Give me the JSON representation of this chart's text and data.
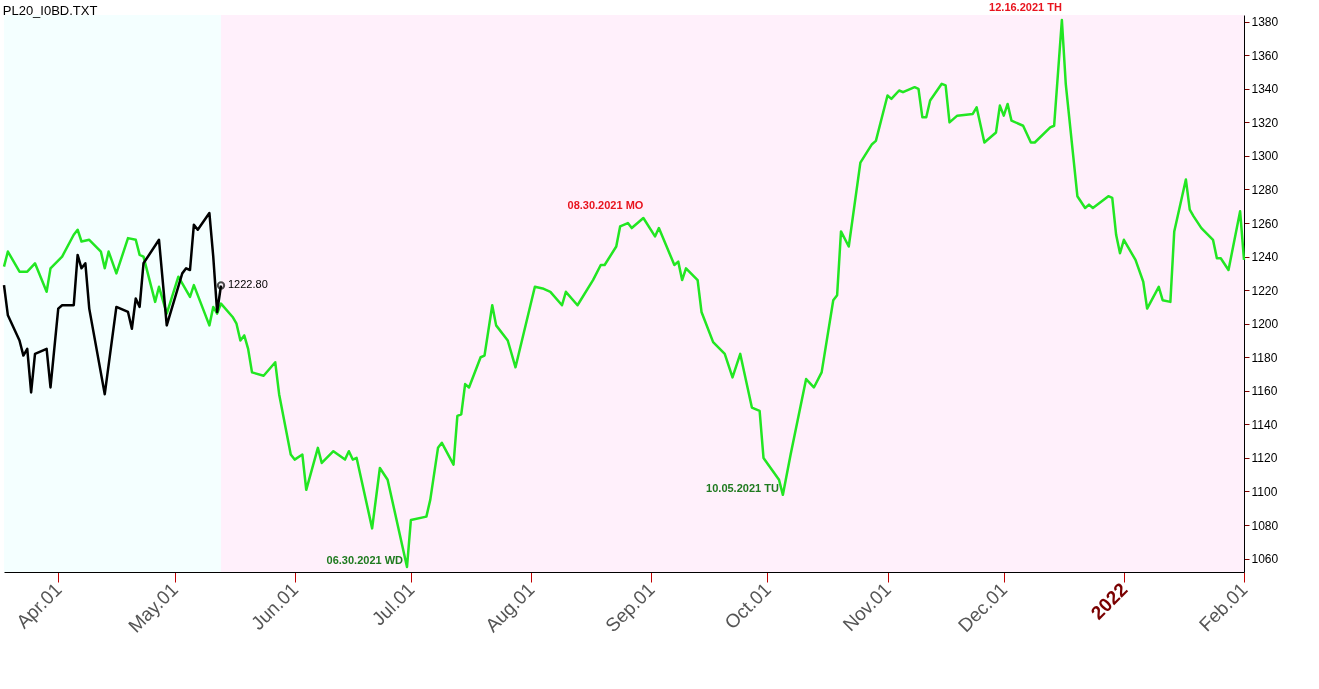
{
  "chart_data": {
    "type": "line",
    "title": "PL20_I0BD.TXT",
    "xlim": [
      "2021-03-18",
      "2022-02-01"
    ],
    "ylim": [
      1052,
      1384
    ],
    "xticks": [
      {
        "value": "2021-04-01",
        "label": "Apr.01"
      },
      {
        "value": "2021-05-01",
        "label": "May.01"
      },
      {
        "value": "2021-06-01",
        "label": "Jun.01"
      },
      {
        "value": "2021-07-01",
        "label": "Jul.01"
      },
      {
        "value": "2021-08-01",
        "label": "Aug.01"
      },
      {
        "value": "2021-09-01",
        "label": "Sep.01"
      },
      {
        "value": "2021-10-01",
        "label": "Oct.01"
      },
      {
        "value": "2021-11-01",
        "label": "Nov.01"
      },
      {
        "value": "2021-12-01",
        "label": "Dec.01"
      },
      {
        "value": "2022-01-01",
        "label": "2022"
      },
      {
        "value": "2022-02-01",
        "label": "Feb.01"
      }
    ],
    "yticks": [
      1060,
      1080,
      1100,
      1120,
      1140,
      1160,
      1180,
      1200,
      1220,
      1240,
      1260,
      1280,
      1300,
      1320,
      1340,
      1360,
      1380
    ],
    "bands": [
      {
        "axis": "x",
        "from": "2021-03-18",
        "to": "2021-05-13",
        "color": "#f4ffff"
      },
      {
        "axis": "x",
        "from": "2021-05-13",
        "to": "2022-02-01",
        "color": "#fff0fb"
      }
    ],
    "series": [
      {
        "color": "#22e622",
        "x": [
          "2021-03-18",
          "2021-03-19",
          "2021-03-22",
          "2021-03-24",
          "2021-03-26",
          "2021-03-29",
          "2021-03-30",
          "2021-04-02",
          "2021-04-05",
          "2021-04-06",
          "2021-04-07",
          "2021-04-09",
          "2021-04-12",
          "2021-04-13",
          "2021-04-14",
          "2021-04-16",
          "2021-04-19",
          "2021-04-21",
          "2021-04-22",
          "2021-04-23",
          "2021-04-26",
          "2021-04-27",
          "2021-04-29",
          "2021-05-02",
          "2021-05-05",
          "2021-05-06",
          "2021-05-10",
          "2021-05-11",
          "2021-05-12",
          "2021-05-13",
          "2021-05-16",
          "2021-05-17",
          "2021-05-18",
          "2021-05-19",
          "2021-05-20",
          "2021-05-21",
          "2021-05-24",
          "2021-05-27",
          "2021-05-28",
          "2021-05-31",
          "2021-06-01",
          "2021-06-03",
          "2021-06-04",
          "2021-06-07",
          "2021-06-08",
          "2021-06-11",
          "2021-06-14",
          "2021-06-15",
          "2021-06-16",
          "2021-06-17",
          "2021-06-21",
          "2021-06-23",
          "2021-06-25",
          "2021-06-30",
          "2021-07-01",
          "2021-07-05",
          "2021-07-06",
          "2021-07-08",
          "2021-07-09",
          "2021-07-12",
          "2021-07-13",
          "2021-07-14",
          "2021-07-15",
          "2021-07-16",
          "2021-07-19",
          "2021-07-20",
          "2021-07-22",
          "2021-07-23",
          "2021-07-26",
          "2021-07-28",
          "2021-08-02",
          "2021-08-04",
          "2021-08-06",
          "2021-08-09",
          "2021-08-10",
          "2021-08-13",
          "2021-08-17",
          "2021-08-19",
          "2021-08-20",
          "2021-08-23",
          "2021-08-24",
          "2021-08-26",
          "2021-08-27",
          "2021-08-30",
          "2021-09-02",
          "2021-09-03",
          "2021-09-07",
          "2021-09-08",
          "2021-09-09",
          "2021-09-10",
          "2021-09-13",
          "2021-09-14",
          "2021-09-15",
          "2021-09-17",
          "2021-09-20",
          "2021-09-22",
          "2021-09-24",
          "2021-09-27",
          "2021-09-29",
          "2021-09-30",
          "2021-10-04",
          "2021-10-05",
          "2021-10-07",
          "2021-10-11",
          "2021-10-13",
          "2021-10-15",
          "2021-10-18",
          "2021-10-19",
          "2021-10-20",
          "2021-10-22",
          "2021-10-25",
          "2021-10-28",
          "2021-10-29",
          "2021-11-01",
          "2021-11-02",
          "2021-11-04",
          "2021-11-05",
          "2021-11-08",
          "2021-11-09",
          "2021-11-10",
          "2021-11-11",
          "2021-11-12",
          "2021-11-15",
          "2021-11-16",
          "2021-11-17",
          "2021-11-19",
          "2021-11-23",
          "2021-11-24",
          "2021-11-26",
          "2021-11-29",
          "2021-11-30",
          "2021-12-01",
          "2021-12-02",
          "2021-12-03",
          "2021-12-06",
          "2021-12-08",
          "2021-12-09",
          "2021-12-13",
          "2021-12-14",
          "2021-12-16",
          "2021-12-17",
          "2021-12-20",
          "2021-12-22",
          "2021-12-23",
          "2021-12-24",
          "2021-12-28",
          "2021-12-29",
          "2021-12-30",
          "2021-12-31",
          "2022-01-01",
          "2022-01-04",
          "2022-01-06",
          "2022-01-07",
          "2022-01-10",
          "2022-01-11",
          "2022-01-13",
          "2022-01-14",
          "2022-01-17",
          "2022-01-18",
          "2022-01-19",
          "2022-01-21",
          "2022-01-24",
          "2022-01-25",
          "2022-01-26",
          "2022-01-28",
          "2022-01-31",
          "2022-02-01"
        ],
        "values": [
          1234,
          1243,
          1231,
          1231,
          1236,
          1219,
          1233,
          1240,
          1253,
          1256,
          1249,
          1250,
          1243,
          1233,
          1243,
          1230,
          1251,
          1250,
          1241,
          1240,
          1213,
          1222,
          1206,
          1228,
          1216,
          1223,
          1199,
          1210,
          1206,
          1212,
          1204,
          1200,
          1190,
          1193,
          1185,
          1171,
          1169,
          1177,
          1158,
          1122,
          1119,
          1122,
          1101,
          1126,
          1117,
          1124,
          1119,
          1124,
          1119,
          1120,
          1078,
          1114,
          1107,
          1055,
          1083,
          1085,
          1095,
          1126,
          1129,
          1116,
          1145,
          1146,
          1164,
          1162,
          1180,
          1181,
          1211,
          1199,
          1190,
          1174,
          1222,
          1221,
          1219,
          1211,
          1219,
          1211,
          1226,
          1235,
          1235,
          1246,
          1258,
          1260,
          1257,
          1263,
          1252,
          1257,
          1235,
          1237,
          1226,
          1233,
          1226,
          1207,
          1201,
          1189,
          1182,
          1168,
          1182,
          1150,
          1148,
          1120,
          1107,
          1098,
          1122,
          1167,
          1162,
          1171,
          1214,
          1217,
          1255,
          1246,
          1296,
          1307,
          1309,
          1336,
          1334,
          1339,
          1338,
          1341,
          1340,
          1323,
          1323,
          1333,
          1343,
          1342,
          1320,
          1324,
          1325,
          1329,
          1308,
          1314,
          1330,
          1324,
          1331,
          1321,
          1318,
          1308,
          1308,
          1317,
          1318,
          1381,
          1343,
          1276,
          1269,
          1271,
          1269,
          1276,
          1275,
          1253,
          1242,
          1250,
          1238,
          1225,
          1209,
          1222,
          1214,
          1213,
          1255,
          1286,
          1268,
          1264,
          1257,
          1250,
          1239,
          1239,
          1232,
          1267,
          1238
        ]
      },
      {
        "color": "#000000",
        "x": [
          "2021-03-18",
          "2021-03-19",
          "2021-03-22",
          "2021-03-23",
          "2021-03-24",
          "2021-03-25",
          "2021-03-26",
          "2021-03-29",
          "2021-03-30",
          "2021-04-01",
          "2021-04-02",
          "2021-04-05",
          "2021-04-06",
          "2021-04-07",
          "2021-04-08",
          "2021-04-09",
          "2021-04-13",
          "2021-04-16",
          "2021-04-19",
          "2021-04-20",
          "2021-04-21",
          "2021-04-22",
          "2021-04-23",
          "2021-04-27",
          "2021-04-29",
          "2021-05-03",
          "2021-05-04",
          "2021-05-05",
          "2021-05-06",
          "2021-05-07",
          "2021-05-10",
          "2021-05-11",
          "2021-05-12",
          "2021-05-13"
        ],
        "values": [
          1223,
          1205,
          1190,
          1181,
          1185,
          1159,
          1182,
          1185,
          1162,
          1209,
          1211,
          1211,
          1241,
          1233,
          1236,
          1209,
          1158,
          1210,
          1207,
          1197,
          1215,
          1210,
          1236,
          1250,
          1199,
          1230,
          1233,
          1232,
          1259,
          1256,
          1266,
          1240,
          1207,
          1222.8
        ],
        "value_labels": [
          null,
          null,
          null,
          null,
          null,
          null,
          null,
          null,
          null,
          null,
          null,
          null,
          null,
          null,
          null,
          null,
          null,
          null,
          null,
          null,
          null,
          null,
          null,
          null,
          null,
          null,
          null,
          null,
          null,
          null,
          null,
          null,
          null,
          "1222.80"
        ]
      }
    ],
    "annotations": [
      {
        "text": "06.30.2021 WD",
        "x": "2021-06-30",
        "y": 1055
      },
      {
        "text": "08.30.2021 MO",
        "x": "2021-08-30",
        "y": 1263
      },
      {
        "text": "10.05.2021 TU",
        "x": "2021-10-05",
        "y": 1098
      },
      {
        "text": "12.16.2021 TH",
        "x": "2021-12-16",
        "y": 1381
      }
    ]
  }
}
